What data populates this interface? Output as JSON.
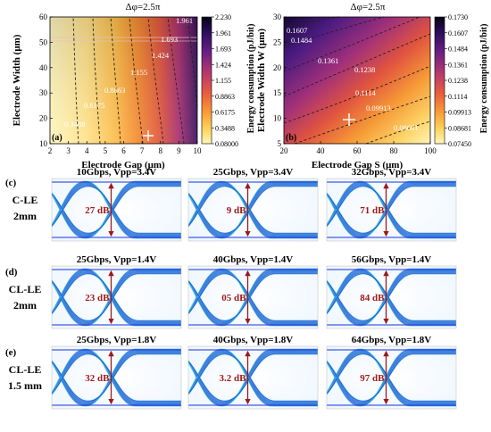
{
  "panels": [
    {
      "id": "a",
      "title": "Δφ=2.5π",
      "panel_label": "(a)",
      "xlabel": "Electrode Gap (μm)",
      "ylabel": "Electrode Width (μm)",
      "x_ticks": [
        "2",
        "3",
        "4",
        "5",
        "6",
        "7",
        "8",
        "9",
        "10"
      ],
      "y_ticks": [
        "10",
        "20",
        "30",
        "40",
        "50",
        "60"
      ],
      "contours": [
        {
          "label": "0.3488"
        },
        {
          "label": "0.6175"
        },
        {
          "label": "0.8863"
        },
        {
          "label": "1.155"
        },
        {
          "label": "1.424"
        },
        {
          "label": "1.693"
        },
        {
          "label": "1.961"
        }
      ],
      "colorbar_label": "Energy consumption (pJ/bit)",
      "colorbar_ticks": [
        "2.230",
        "1.961",
        "1.693",
        "1.424",
        "1.155",
        "0.8863",
        "0.6175",
        "0.3488",
        "0.08000"
      ]
    },
    {
      "id": "b",
      "title": "Δφ=2.5π",
      "panel_label": "(b)",
      "xlabel": "Electrode Gap S (μm)",
      "ylabel": "Electrode Width W (μm)",
      "x_ticks": [
        "20",
        "40",
        "60",
        "80",
        "100"
      ],
      "y_ticks": [
        "5",
        "10",
        "15",
        "20",
        "25",
        "30"
      ],
      "contours": [
        {
          "label": "0.1607"
        },
        {
          "label": "0.1484"
        },
        {
          "label": "0.1361"
        },
        {
          "label": "0.1238"
        },
        {
          "label": "0.1114"
        },
        {
          "label": "0.09913"
        },
        {
          "label": "0.08681"
        }
      ],
      "colorbar_label": "Energy consumption (pJ/bit)",
      "colorbar_ticks": [
        "0.1730",
        "0.1607",
        "0.1484",
        "0.1361",
        "0.1238",
        "0.1114",
        "0.09913",
        "0.08681",
        "0.07450"
      ]
    }
  ],
  "eye_rows": [
    {
      "label": "(c)",
      "device": "C-LE",
      "length": "2mm",
      "eyes": [
        {
          "title": "10Gbps, Vpp=3.4V",
          "er": "27 dB"
        },
        {
          "title": "25Gbps, Vpp=3.4V",
          "er": "9 dB"
        },
        {
          "title": "32Gbps, Vpp=3.4V",
          "er": "71 dB"
        }
      ]
    },
    {
      "label": "(d)",
      "device": "CL-LE",
      "length": "2mm",
      "eyes": [
        {
          "title": "25Gbps, Vpp=1.4V",
          "er": "23 dB"
        },
        {
          "title": "40Gbps, Vpp=1.4V",
          "er": "05 dB"
        },
        {
          "title": "56Gbps, Vpp=1.4V",
          "er": "84 dB"
        }
      ]
    },
    {
      "label": "(e)",
      "device": "CL-LE",
      "length": "1.5 mm",
      "eyes": [
        {
          "title": "25Gbps, Vpp=1.8V",
          "er": "32 dB"
        },
        {
          "title": "40Gbps, Vpp=1.8V",
          "er": "3.2 dB"
        },
        {
          "title": "64Gbps, Vpp=1.8V",
          "er": "97 dB"
        }
      ]
    }
  ],
  "colors": {
    "eye_trace": "#1f3fe0",
    "eye_glow": "#4fe0d0",
    "arrow": "#9b1b1b",
    "er_text": "#a11a1a",
    "colormap": [
      "#fff7b8",
      "#fdd35a",
      "#f9a43a",
      "#f3762f",
      "#d94a4f",
      "#a0307a",
      "#5b1e86",
      "#1c0c4a",
      "#050212"
    ]
  }
}
